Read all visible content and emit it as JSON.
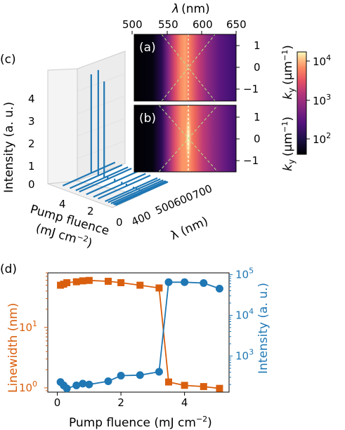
{
  "colors": {
    "orange": "#d95f0e",
    "blue": "#1f77b4",
    "dash": "#b5e38a",
    "fit_line": "#f3f0c8"
  },
  "panel_labels": {
    "a": "(a)",
    "b": "(b)",
    "c": "(c)",
    "d": "(d)"
  },
  "colorbar": {
    "ticks": [
      "10",
      "10",
      "10"
    ],
    "exponents": [
      "4",
      "3",
      "2"
    ],
    "values": [
      10000,
      1000,
      100
    ]
  },
  "top_axis": {
    "label_symbol": "λ",
    "label_unit": "(nm)",
    "ticks": [
      "500",
      "550",
      "600",
      "650"
    ]
  },
  "ky_axis": {
    "label_base": "k",
    "label_sub": "y",
    "label_unit_open": "(μm",
    "label_unit_sup": "−1",
    "label_unit_close": ")",
    "ticks": [
      "1",
      "0",
      "−1"
    ]
  },
  "panel_c": {
    "z_label": "Intensity (a. u.)",
    "z_ticks": [
      "4",
      "3",
      "2",
      "1",
      "0"
    ],
    "x_label_line1": "Pump fluence",
    "x_label_line2_open": "(mJ cm",
    "x_label_line2_sup": "−2",
    "x_label_line2_close": ")",
    "x_ticks": [
      "4",
      "2",
      "0"
    ],
    "y_label": "λ (nm)",
    "y_ticks": [
      "400",
      "500",
      "600",
      "700"
    ]
  },
  "chart_data": [
    {
      "type": "heatmap",
      "panel": "(a)",
      "xlabel": "λ (nm)",
      "ylabel": "ky (μm−1)",
      "xlim": [
        500,
        650
      ],
      "ylim": [
        -1.5,
        1.5
      ],
      "colorbar_range": [
        30,
        20000
      ],
      "colorbar_scale": "log",
      "emission_center_nm": 570
    },
    {
      "type": "heatmap",
      "panel": "(b)",
      "xlabel": "λ (nm)",
      "ylabel": "ky (μm−1)",
      "xlim": [
        500,
        650
      ],
      "ylim": [
        -1.5,
        1.5
      ],
      "colorbar_range": [
        30,
        20000
      ],
      "colorbar_scale": "log",
      "emission_center_nm": 570
    },
    {
      "type": "line",
      "panel": "(c)",
      "xlabel": "Pump fluence (mJ cm−2)",
      "ylabel": "λ (nm)",
      "zlabel": "Intensity (a. u.)",
      "xlim": [
        0,
        5.5
      ],
      "ylim": [
        350,
        750
      ],
      "zlim": [
        0,
        4.8
      ],
      "fluences": [
        0.1,
        0.2,
        0.3,
        0.5,
        0.75,
        1.0,
        1.6,
        2.0,
        2.6,
        3.2,
        3.5,
        4.0,
        4.6
      ],
      "peak_wavelength_nm": 570,
      "peak_intensity": [
        0.04,
        0.05,
        0.05,
        0.06,
        0.07,
        0.08,
        0.1,
        0.11,
        0.13,
        0.15,
        4.2,
        4.6,
        4.3
      ]
    },
    {
      "type": "line",
      "panel": "(d)",
      "xlabel": "Pump fluence (mJ cm−2)",
      "xlim": [
        -0.3,
        5.4
      ],
      "x_ticks": [
        0,
        2,
        4
      ],
      "y_left_label": "Linewidth (nm)",
      "y_left_scale": "log",
      "y_left_lim": [
        0.85,
        80
      ],
      "y_right_label": "Intensity (a. u.)",
      "y_right_scale": "log",
      "y_right_lim": [
        130,
        110000
      ],
      "series": [
        {
          "name": "Linewidth (nm)",
          "axis": "left",
          "marker": "square",
          "color": "#d95f0e",
          "x": [
            0.1,
            0.2,
            0.3,
            0.6,
            0.8,
            1.0,
            1.6,
            2.0,
            2.6,
            3.2,
            3.5,
            4.0,
            4.6,
            5.1
          ],
          "y": [
            50,
            52,
            55,
            57,
            59,
            60,
            58,
            55,
            50,
            45,
            1.25,
            1.1,
            1.05,
            0.98
          ]
        },
        {
          "name": "Intensity (a. u.)",
          "axis": "right",
          "marker": "circle",
          "color": "#1f77b4",
          "x": [
            0.1,
            0.2,
            0.3,
            0.6,
            0.8,
            1.0,
            1.6,
            2.0,
            2.6,
            3.2,
            3.5,
            4.0,
            4.6,
            5.1
          ],
          "y": [
            230,
            190,
            160,
            190,
            210,
            200,
            240,
            330,
            340,
            410,
            65000,
            65000,
            62000,
            45000
          ]
        }
      ]
    }
  ]
}
